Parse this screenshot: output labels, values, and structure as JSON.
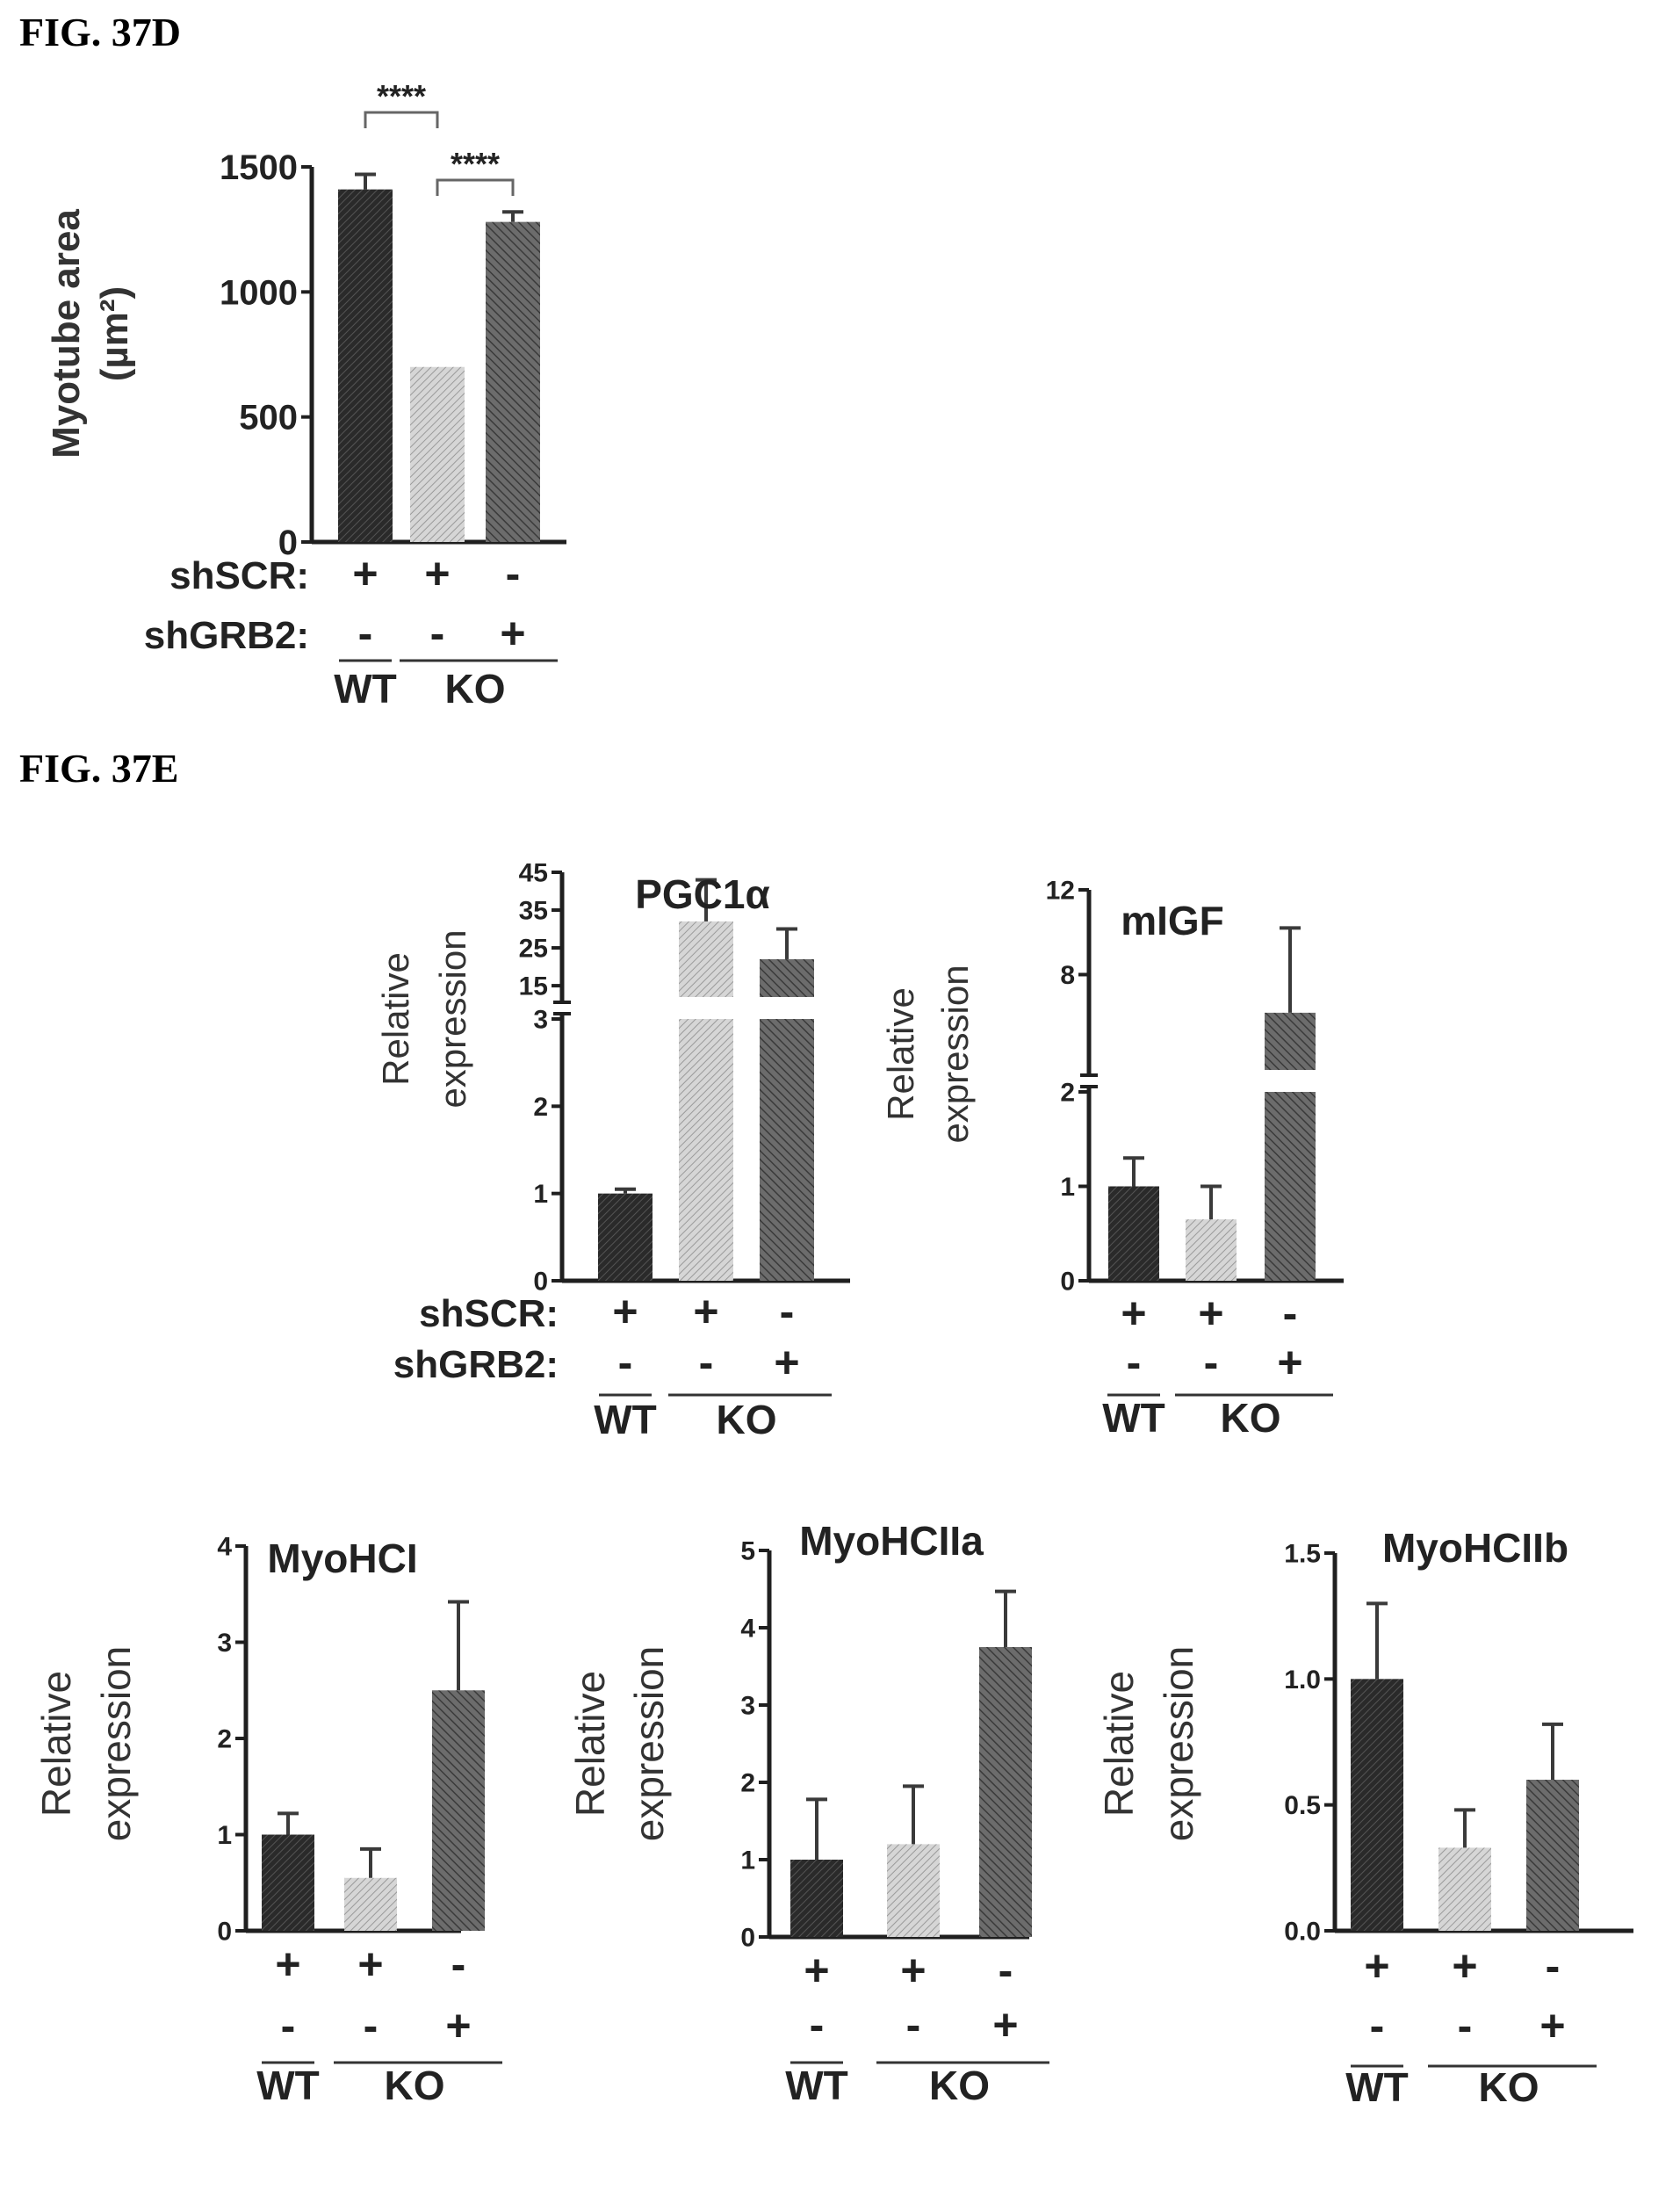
{
  "figures": {
    "d_label": "FIG. 37D",
    "e_label": "FIG. 37E"
  },
  "conditions": {
    "row1_label": "shSCR:",
    "row2_label": "shGRB2:",
    "row1": [
      "+",
      "+",
      "-"
    ],
    "row2": [
      "-",
      "-",
      "+"
    ],
    "group_wt": "WT",
    "group_ko": "KO"
  },
  "colors": {
    "bar1": "#1e1e1e",
    "bar2": "#c8c8c8",
    "bar3": "#5a5a5a"
  },
  "chart_data": [
    {
      "id": "d",
      "type": "bar",
      "title": "",
      "ylabel": "Myotube area",
      "ylabel2": "(µm²)",
      "ylim": [
        0,
        1500
      ],
      "yticks": [
        0,
        500,
        1000,
        1500
      ],
      "values": [
        1410,
        700,
        1280
      ],
      "errors": [
        60,
        0,
        40
      ],
      "significance": [
        {
          "from": 0,
          "to": 1,
          "label": "****"
        },
        {
          "from": 1,
          "to": 2,
          "label": "****"
        }
      ]
    },
    {
      "id": "pgc",
      "type": "bar",
      "title": "PGC1α",
      "ylabel": "Relative",
      "ylabel2": "expression",
      "broken_axis": true,
      "lower_ylim": [
        0,
        3
      ],
      "lower_yticks": [
        0,
        1,
        2,
        3
      ],
      "upper_ylim": [
        12,
        45
      ],
      "upper_yticks": [
        15,
        25,
        35,
        45
      ],
      "values": [
        1,
        32,
        22
      ],
      "errors": [
        0.05,
        11,
        8
      ]
    },
    {
      "id": "migf",
      "type": "bar",
      "title": "mIGF",
      "ylabel": "Relative",
      "ylabel2": "expression",
      "broken_axis": true,
      "lower_ylim": [
        0,
        2
      ],
      "lower_yticks": [
        0,
        1,
        2
      ],
      "upper_ylim": [
        3.5,
        12
      ],
      "upper_yticks": [
        8,
        12
      ],
      "values": [
        1,
        0.65,
        6.2
      ],
      "errors": [
        0.3,
        0.35,
        4
      ]
    },
    {
      "id": "myohci",
      "type": "bar",
      "title": "MyoHCI",
      "ylabel": "Relative",
      "ylabel2": "expression",
      "ylim": [
        0,
        4
      ],
      "yticks": [
        0,
        1,
        2,
        3,
        4
      ],
      "values": [
        1,
        0.55,
        2.5
      ],
      "errors": [
        0.22,
        0.3,
        0.92
      ]
    },
    {
      "id": "myohciia",
      "type": "bar",
      "title": "MyoHCIIa",
      "ylabel": "Relative",
      "ylabel2": "expression",
      "ylim": [
        0,
        5
      ],
      "yticks": [
        0,
        1,
        2,
        3,
        4,
        5
      ],
      "values": [
        1,
        1.2,
        3.75
      ],
      "errors": [
        0.78,
        0.75,
        0.72
      ]
    },
    {
      "id": "myohciib",
      "type": "bar",
      "title": "MyoHCIIb",
      "ylabel": "Relative",
      "ylabel2": "expression",
      "ylim": [
        0,
        1.5
      ],
      "yticks": [
        "0.0",
        "0.5",
        "1.0",
        "1.5"
      ],
      "values": [
        1.0,
        0.33,
        0.6
      ],
      "errors": [
        0.3,
        0.15,
        0.22
      ]
    }
  ]
}
